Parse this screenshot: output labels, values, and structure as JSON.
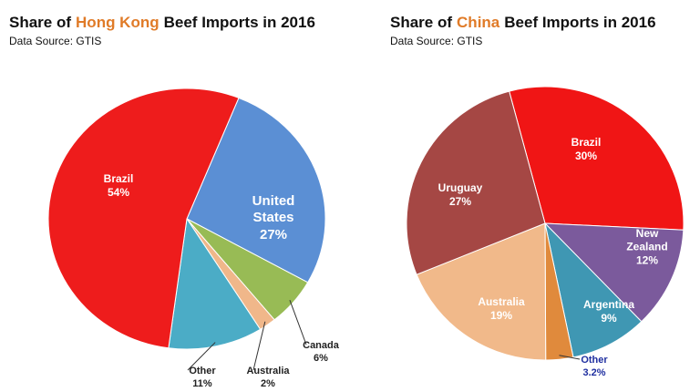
{
  "chart_data": [
    {
      "type": "pie",
      "title_parts": [
        "Share of",
        "Hong Kong",
        "Beef Imports in 2016"
      ],
      "title_highlight": 1,
      "highlight_color": "#e07b28",
      "subtitle": "Data Source: GTIS",
      "categories": [
        "United States",
        "Canada",
        "Australia",
        "Other",
        "Brazil"
      ],
      "values": [
        27,
        6,
        2,
        11,
        54
      ],
      "value_labels": [
        "27%",
        "6%",
        "2%",
        "11%",
        "54%"
      ],
      "colors": [
        "#5b8fd4",
        "#98bb55",
        "#f0b78a",
        "#4bacc6",
        "#ee1c1c"
      ]
    },
    {
      "type": "pie",
      "title_parts": [
        "Share of",
        "China",
        "Beef Imports in 2016"
      ],
      "title_highlight": 1,
      "highlight_color": "#e07b28",
      "subtitle": "Data Source: GTIS",
      "categories": [
        "Brazil",
        "New Zealand",
        "Argentina",
        "Other",
        "Australia",
        "Uruguay"
      ],
      "values": [
        30,
        12,
        9,
        3.2,
        19,
        27
      ],
      "value_labels": [
        "30%",
        "12%",
        "9%",
        "3.2%",
        "19%",
        "27%"
      ],
      "colors": [
        "#f01515",
        "#7b5a9c",
        "#3f97b3",
        "#e08a3c",
        "#f1b98a",
        "#a54744"
      ]
    }
  ]
}
